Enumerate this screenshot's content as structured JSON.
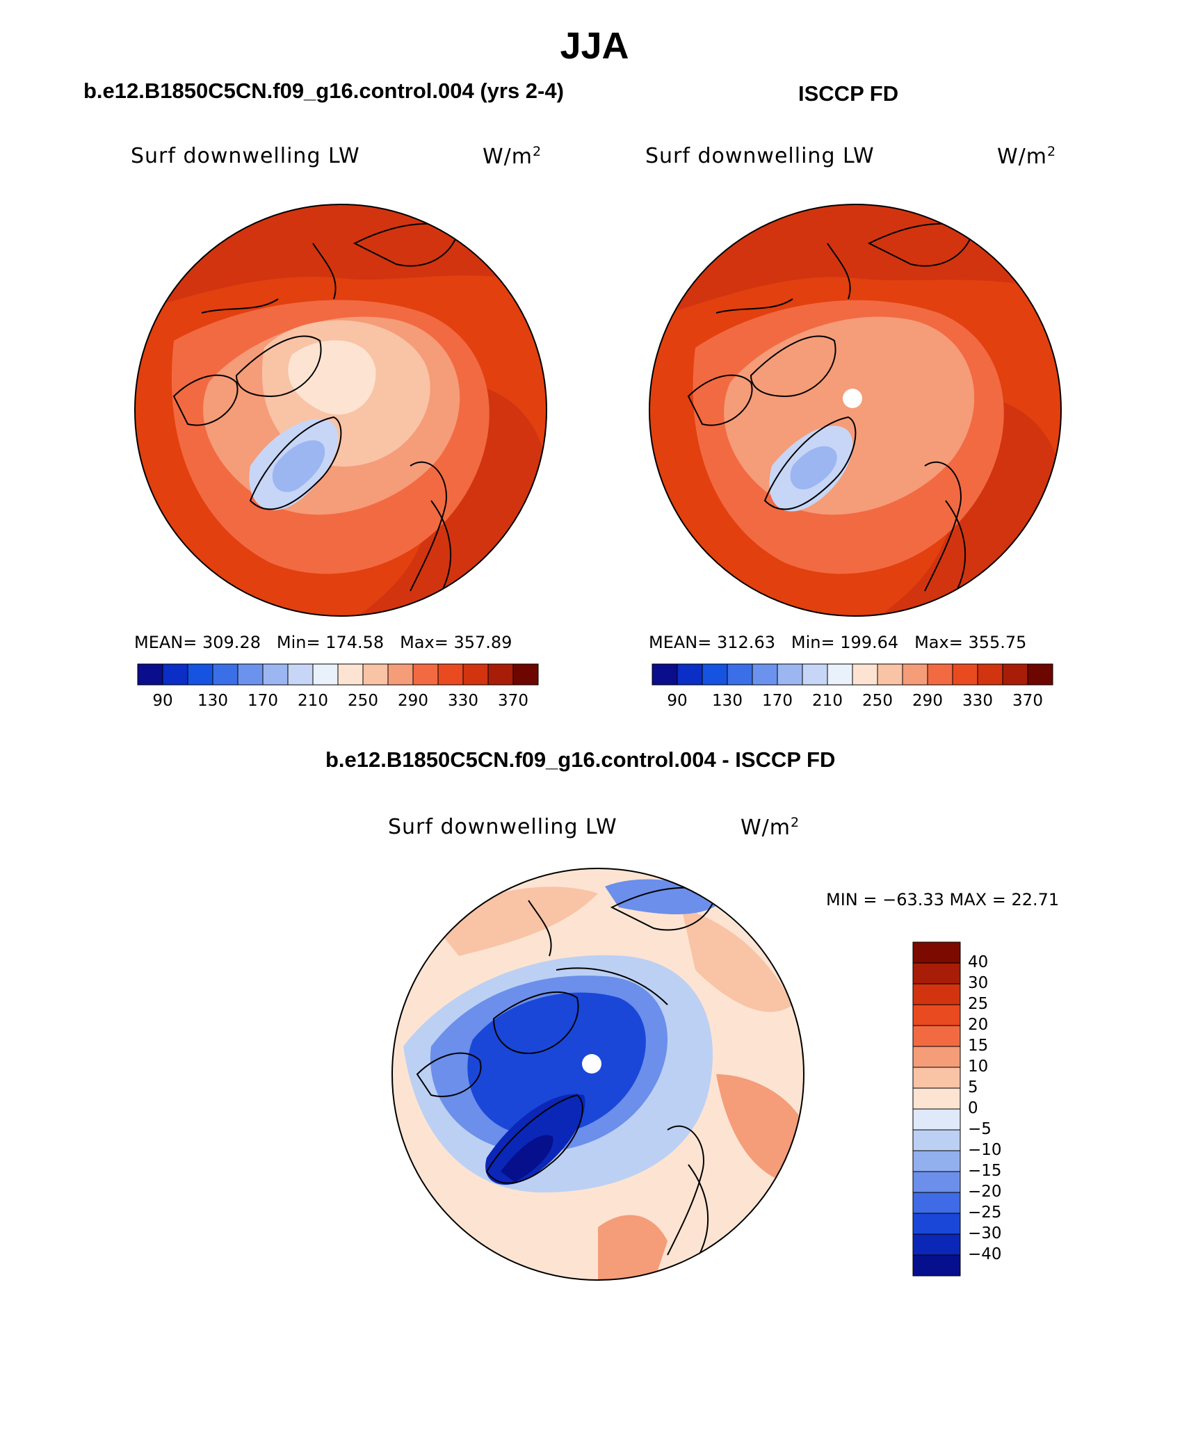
{
  "title": "JJA",
  "panels": {
    "model": {
      "header": "b.e12.B1850C5CN.f09_g16.control.004 (yrs 2-4)",
      "variable": "Surf downwelling LW",
      "units": "W/m",
      "units_exp": "2",
      "stats": {
        "mean_label": "MEAN=",
        "mean": "309.28",
        "min_label": "Min=",
        "min": "174.58",
        "max_label": "Max=",
        "max": "357.89"
      }
    },
    "obs": {
      "header": "ISCCP FD",
      "variable": "Surf downwelling LW",
      "units": "W/m",
      "units_exp": "2",
      "stats": {
        "mean_label": "MEAN=",
        "mean": "312.63",
        "min_label": "Min=",
        "min": "199.64",
        "max_label": "Max=",
        "max": "355.75"
      }
    },
    "diff": {
      "header": "b.e12.B1850C5CN.f09_g16.control.004 - ISCCP FD",
      "variable": "Surf downwelling LW",
      "units": "W/m",
      "units_exp": "2",
      "minmax_text": "MIN = −63.33 MAX =   22.71"
    }
  },
  "chart_data": [
    {
      "type": "heatmap",
      "projection": "north-polar-stereographic",
      "title": "b.e12.B1850C5CN.f09_g16.control.004 (yrs 2-4)",
      "variable": "Surf downwelling LW",
      "units": "W/m2",
      "mean": 309.28,
      "min": 174.58,
      "max": 357.89,
      "colorbar": {
        "orientation": "horizontal",
        "tick_labels": [
          "90",
          "130",
          "170",
          "210",
          "250",
          "290",
          "330",
          "370"
        ],
        "levels": [
          90,
          110,
          130,
          150,
          170,
          190,
          210,
          230,
          250,
          270,
          290,
          310,
          330,
          350,
          370
        ],
        "colors": [
          "#0a0d8c",
          "#0a2ec6",
          "#1553e0",
          "#3a6fe8",
          "#6b93ee",
          "#9cb6f2",
          "#c7d6f6",
          "#e9f1fb",
          "#fde4d2",
          "#f9c3a6",
          "#f59c79",
          "#f26a42",
          "#ea4a1f",
          "#d23410",
          "#a81d08",
          "#6e0600"
        ]
      }
    },
    {
      "type": "heatmap",
      "projection": "north-polar-stereographic",
      "title": "ISCCP FD",
      "variable": "Surf downwelling LW",
      "units": "W/m2",
      "mean": 312.63,
      "min": 199.64,
      "max": 355.75,
      "colorbar": {
        "orientation": "horizontal",
        "tick_labels": [
          "90",
          "130",
          "170",
          "210",
          "250",
          "290",
          "330",
          "370"
        ],
        "levels": [
          90,
          110,
          130,
          150,
          170,
          190,
          210,
          230,
          250,
          270,
          290,
          310,
          330,
          350,
          370
        ],
        "colors": [
          "#0a0d8c",
          "#0a2ec6",
          "#1553e0",
          "#3a6fe8",
          "#6b93ee",
          "#9cb6f2",
          "#c7d6f6",
          "#e9f1fb",
          "#fde4d2",
          "#f9c3a6",
          "#f59c79",
          "#f26a42",
          "#ea4a1f",
          "#d23410",
          "#a81d08",
          "#6e0600"
        ]
      }
    },
    {
      "type": "heatmap",
      "projection": "north-polar-stereographic",
      "title": "b.e12.B1850C5CN.f09_g16.control.004 - ISCCP FD",
      "variable": "Surf downwelling LW",
      "units": "W/m2",
      "min": -63.33,
      "max": 22.71,
      "colorbar": {
        "orientation": "vertical",
        "tick_labels": [
          "40",
          "30",
          "25",
          "20",
          "15",
          "10",
          "5",
          "0",
          "−5",
          "−10",
          "−15",
          "−20",
          "−25",
          "−30",
          "−40"
        ],
        "levels": [
          40,
          30,
          25,
          20,
          15,
          10,
          5,
          0,
          -5,
          -10,
          -15,
          -20,
          -25,
          -30,
          -40
        ],
        "colors": [
          "#7d0a00",
          "#a81d08",
          "#d23410",
          "#ea4a1f",
          "#f26a42",
          "#f59c79",
          "#f9c3a6",
          "#fde4d2",
          "#dfe9f9",
          "#bcd0f4",
          "#93b0ee",
          "#6b8fea",
          "#3f6be6",
          "#1a47d8",
          "#0b27b8",
          "#060f8c"
        ]
      }
    }
  ]
}
